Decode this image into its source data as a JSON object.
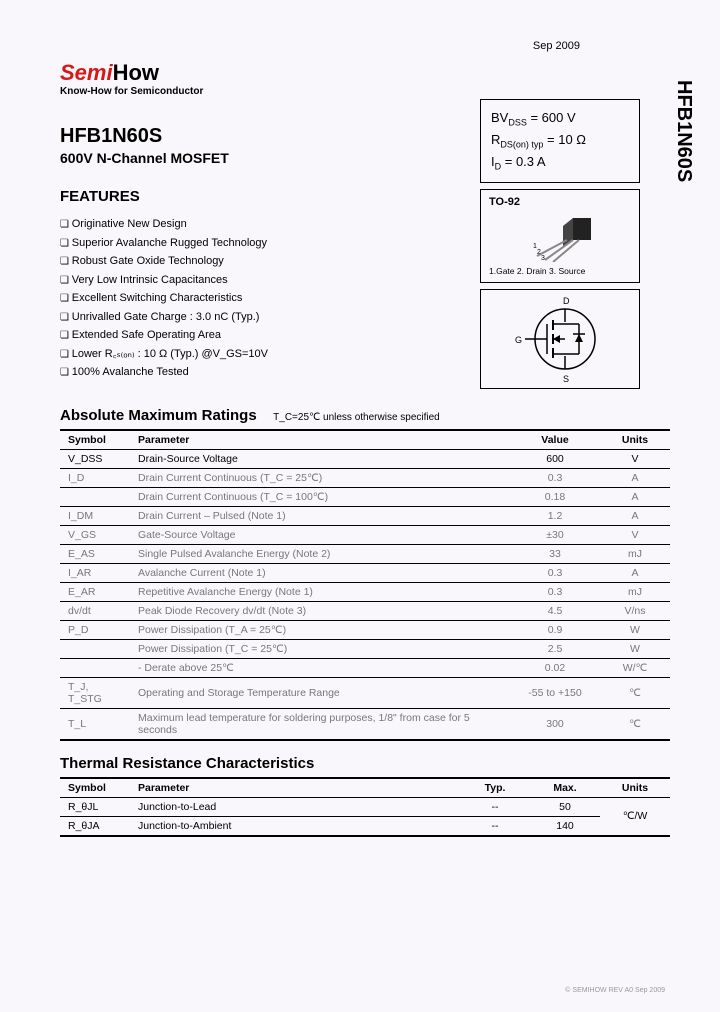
{
  "date": "Sep 2009",
  "sideTitle": "HFB1N60S",
  "logo": {
    "semi": "Semi",
    "how": "How",
    "tag": "Know-How for Semiconductor"
  },
  "part": "HFB1N60S",
  "partSub": "600V N-Channel MOSFET",
  "specBox": {
    "line1_a": "BV",
    "line1_sub": "DSS",
    "line1_b": " = 600 V",
    "line2_a": "R",
    "line2_sub": "DS(on) typ",
    "line2_b": " = 10 Ω",
    "line3_a": "I",
    "line3_sub": "D",
    "line3_b": " = 0.3 A"
  },
  "package": {
    "name": "TO-92",
    "pins": "1.Gate  2. Drain  3. Source"
  },
  "featuresTitle": "FEATURES",
  "features": [
    "Originative New Design",
    "Superior Avalanche Rugged Technology",
    "Robust Gate Oxide Technology",
    "Very Low Intrinsic Capacitances",
    "Excellent Switching Characteristics",
    "Unrivalled Gate Charge : 3.0 nC (Typ.)",
    "Extended Safe Operating Area",
    "Lower R꜀ₛ₍ₒₙ₎ : 10 Ω (Typ.) @V_GS=10V",
    "100% Avalanche Tested"
  ],
  "amr": {
    "title": "Absolute  Maximum  Ratings",
    "cond": "T_C=25℃ unless otherwise specified",
    "headers": [
      "Symbol",
      "Parameter",
      "Value",
      "Units"
    ],
    "rows": [
      {
        "sym": "V_DSS",
        "param": "Drain-Source Voltage",
        "val": "600",
        "unit": "V"
      },
      {
        "sym": "I_D",
        "param": "Drain Current          Continuous (T_C = 25℃)",
        "val": "0.3",
        "unit": "A",
        "dim": true
      },
      {
        "sym": "",
        "param": "Drain Current          Continuous (T_C = 100℃)",
        "val": "0.18",
        "unit": "A",
        "dim": true
      },
      {
        "sym": "I_DM",
        "param": "Drain Current       – Pulsed                  (Note 1)",
        "val": "1.2",
        "unit": "A",
        "dim": true
      },
      {
        "sym": "V_GS",
        "param": "Gate-Source Voltage",
        "val": "±30",
        "unit": "V",
        "dim": true
      },
      {
        "sym": "E_AS",
        "param": "Single Pulsed Avalanche Energy            (Note 2)",
        "val": "33",
        "unit": "mJ",
        "dim": true
      },
      {
        "sym": "I_AR",
        "param": "Avalanche Current                               (Note 1)",
        "val": "0.3",
        "unit": "A",
        "dim": true
      },
      {
        "sym": "E_AR",
        "param": "Repetitive Avalanche Energy                (Note 1)",
        "val": "0.3",
        "unit": "mJ",
        "dim": true
      },
      {
        "sym": "dv/dt",
        "param": "Peak Diode Recovery dv/dt                   (Note 3)",
        "val": "4.5",
        "unit": "V/ns",
        "dim": true
      },
      {
        "sym": "P_D",
        "param": "Power Dissipation (T_A = 25℃)",
        "val": "0.9",
        "unit": "W",
        "dim": true
      },
      {
        "sym": "",
        "param": "Power Dissipation (T_C = 25℃)",
        "val": "2.5",
        "unit": "W",
        "dim": true
      },
      {
        "sym": "",
        "param": "                    - Derate above 25℃",
        "val": "0.02",
        "unit": "W/℃",
        "dim": true
      },
      {
        "sym": "T_J, T_STG",
        "param": "Operating and Storage Temperature Range",
        "val": "-55 to +150",
        "unit": "℃",
        "dim": true
      },
      {
        "sym": "T_L",
        "param": "Maximum lead temperature for soldering purposes, 1/8\" from case for 5 seconds",
        "val": "300",
        "unit": "℃",
        "dim": true
      }
    ]
  },
  "thermal": {
    "title": "Thermal  Resistance Characteristics",
    "headers": [
      "Symbol",
      "Parameter",
      "Typ.",
      "Max.",
      "Units"
    ],
    "rows": [
      {
        "sym": "R_θJL",
        "param": "Junction-to-Lead",
        "typ": "--",
        "max": "50"
      },
      {
        "sym": "R_θJA",
        "param": "Junction-to-Ambient",
        "typ": "--",
        "max": "140"
      }
    ],
    "unit": "℃/W"
  },
  "footer": "© SEMIHOW REV A0 Sep 2009"
}
